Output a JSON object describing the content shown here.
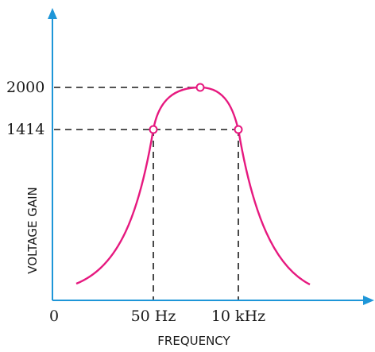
{
  "chart_data": {
    "type": "line",
    "xlabel": "FREQUENCY",
    "ylabel": "VOLTAGE  GAIN",
    "origin_label": "0",
    "x_tick_labels": [
      "50 Hz",
      "10 kHz"
    ],
    "y_tick_labels": [
      "2000",
      "1414"
    ],
    "y_values": [
      2000,
      1414
    ],
    "series": [
      {
        "values": [
          {
            "x": "below 50 Hz",
            "y": 110
          },
          {
            "x": "50 Hz",
            "y": 1414
          },
          {
            "x": "midband",
            "y": 2000
          },
          {
            "x": "10 kHz",
            "y": 1414
          },
          {
            "x": "above 10 kHz",
            "y": 110
          }
        ]
      }
    ],
    "marked_points": [
      {
        "x": "50 Hz",
        "y": 1414
      },
      {
        "x": "midband",
        "y": 2000
      },
      {
        "x": "10 kHz",
        "y": 1414
      }
    ],
    "grid": false
  },
  "colors": {
    "axis": "#1e96d8",
    "curve": "#e6197f",
    "guide": "#1a1a1a",
    "text": "#1a1a1a"
  }
}
